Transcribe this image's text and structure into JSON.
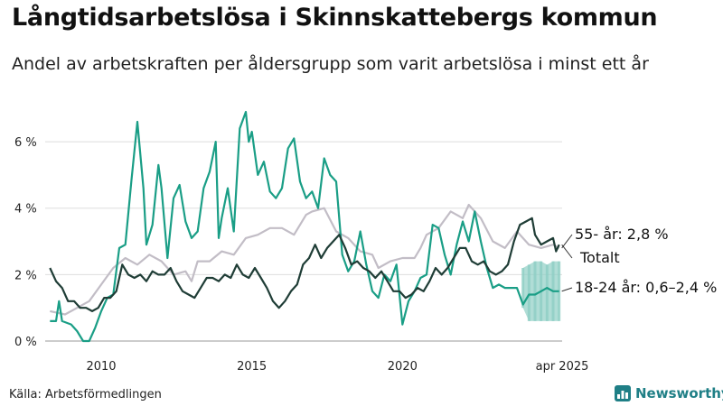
{
  "title": "Långtidsarbetslösa i Skinnskattebergs kommun",
  "subtitle": "Andel av arbetskraften per åldersgrupp som varit arbetslösa i minst ett år",
  "source": "Källa: Arbetsförmedlingen",
  "brand": "Newsworthy",
  "colors": {
    "totalt": "#1f3d36",
    "age55": "#c2bdc6",
    "age1824": "#1a9e86",
    "band": "#8ecfc4",
    "grid": "#dddddd"
  },
  "chart_data": {
    "type": "line",
    "x_ticks": [
      "2010",
      "2015",
      "2020",
      "apr 2025"
    ],
    "y_ticks": [
      "0 %",
      "2 %",
      "4 %",
      "6 %"
    ],
    "xlim": [
      2008.2,
      2025.3
    ],
    "ylim": [
      0,
      6.6
    ],
    "grid": true,
    "series": [
      {
        "key": "age55",
        "name": "55- år: 2,8 %",
        "color": "#c2bdc6",
        "points": [
          [
            2008.3,
            0.9
          ],
          [
            2008.8,
            0.8
          ],
          [
            2009.2,
            1.0
          ],
          [
            2009.6,
            1.2
          ],
          [
            2010.0,
            1.7
          ],
          [
            2010.4,
            2.2
          ],
          [
            2010.8,
            2.5
          ],
          [
            2011.2,
            2.3
          ],
          [
            2011.6,
            2.6
          ],
          [
            2012.0,
            2.4
          ],
          [
            2012.4,
            2.0
          ],
          [
            2012.8,
            2.1
          ],
          [
            2013.0,
            1.8
          ],
          [
            2013.2,
            2.4
          ],
          [
            2013.6,
            2.4
          ],
          [
            2014.0,
            2.7
          ],
          [
            2014.4,
            2.6
          ],
          [
            2014.8,
            3.1
          ],
          [
            2015.2,
            3.2
          ],
          [
            2015.6,
            3.4
          ],
          [
            2016.0,
            3.4
          ],
          [
            2016.4,
            3.2
          ],
          [
            2016.8,
            3.8
          ],
          [
            2017.0,
            3.9
          ],
          [
            2017.4,
            4.0
          ],
          [
            2017.8,
            3.3
          ],
          [
            2018.2,
            3.1
          ],
          [
            2018.6,
            2.7
          ],
          [
            2019.0,
            2.6
          ],
          [
            2019.2,
            2.2
          ],
          [
            2019.6,
            2.4
          ],
          [
            2020.0,
            2.5
          ],
          [
            2020.4,
            2.5
          ],
          [
            2020.6,
            2.8
          ],
          [
            2020.8,
            3.2
          ],
          [
            2021.2,
            3.4
          ],
          [
            2021.6,
            3.9
          ],
          [
            2022.0,
            3.7
          ],
          [
            2022.2,
            4.1
          ],
          [
            2022.6,
            3.7
          ],
          [
            2023.0,
            3.0
          ],
          [
            2023.4,
            2.8
          ],
          [
            2023.8,
            3.3
          ],
          [
            2024.2,
            2.9
          ],
          [
            2024.6,
            2.8
          ],
          [
            2025.0,
            2.9
          ],
          [
            2025.2,
            2.8
          ]
        ]
      },
      {
        "key": "age1824",
        "name": "18-24 år: 0,6–2,4 %",
        "color": "#1a9e86",
        "points": [
          [
            2008.3,
            0.6
          ],
          [
            2008.5,
            0.6
          ],
          [
            2008.6,
            1.2
          ],
          [
            2008.7,
            0.6
          ],
          [
            2009.0,
            0.5
          ],
          [
            2009.2,
            0.3
          ],
          [
            2009.4,
            0.0
          ],
          [
            2009.6,
            0.0
          ],
          [
            2009.8,
            0.4
          ],
          [
            2010.0,
            0.9
          ],
          [
            2010.2,
            1.3
          ],
          [
            2010.4,
            1.4
          ],
          [
            2010.6,
            2.8
          ],
          [
            2010.8,
            2.9
          ],
          [
            2011.0,
            4.8
          ],
          [
            2011.2,
            6.6
          ],
          [
            2011.4,
            4.6
          ],
          [
            2011.5,
            2.9
          ],
          [
            2011.7,
            3.5
          ],
          [
            2011.9,
            5.3
          ],
          [
            2012.0,
            4.6
          ],
          [
            2012.2,
            2.5
          ],
          [
            2012.4,
            4.3
          ],
          [
            2012.6,
            4.7
          ],
          [
            2012.8,
            3.6
          ],
          [
            2013.0,
            3.1
          ],
          [
            2013.2,
            3.3
          ],
          [
            2013.4,
            4.6
          ],
          [
            2013.6,
            5.1
          ],
          [
            2013.8,
            6.0
          ],
          [
            2013.9,
            3.1
          ],
          [
            2014.0,
            3.7
          ],
          [
            2014.2,
            4.6
          ],
          [
            2014.4,
            3.3
          ],
          [
            2014.6,
            6.4
          ],
          [
            2014.8,
            6.9
          ],
          [
            2014.9,
            6.0
          ],
          [
            2015.0,
            6.3
          ],
          [
            2015.2,
            5.0
          ],
          [
            2015.4,
            5.4
          ],
          [
            2015.6,
            4.5
          ],
          [
            2015.8,
            4.3
          ],
          [
            2016.0,
            4.6
          ],
          [
            2016.2,
            5.8
          ],
          [
            2016.4,
            6.1
          ],
          [
            2016.6,
            4.8
          ],
          [
            2016.8,
            4.3
          ],
          [
            2017.0,
            4.5
          ],
          [
            2017.2,
            4.0
          ],
          [
            2017.4,
            5.5
          ],
          [
            2017.6,
            5.0
          ],
          [
            2017.8,
            4.8
          ],
          [
            2018.0,
            2.6
          ],
          [
            2018.2,
            2.1
          ],
          [
            2018.4,
            2.4
          ],
          [
            2018.6,
            3.3
          ],
          [
            2018.8,
            2.3
          ],
          [
            2019.0,
            1.5
          ],
          [
            2019.2,
            1.3
          ],
          [
            2019.4,
            2.0
          ],
          [
            2019.6,
            1.8
          ],
          [
            2019.8,
            2.3
          ],
          [
            2019.9,
            1.4
          ],
          [
            2020.0,
            0.5
          ],
          [
            2020.2,
            1.2
          ],
          [
            2020.4,
            1.5
          ],
          [
            2020.6,
            1.9
          ],
          [
            2020.8,
            2.0
          ],
          [
            2021.0,
            3.5
          ],
          [
            2021.2,
            3.4
          ],
          [
            2021.4,
            2.6
          ],
          [
            2021.6,
            2.0
          ],
          [
            2021.8,
            2.9
          ],
          [
            2022.0,
            3.6
          ],
          [
            2022.2,
            3.0
          ],
          [
            2022.4,
            3.9
          ],
          [
            2022.6,
            3.0
          ],
          [
            2022.8,
            2.2
          ],
          [
            2023.0,
            1.6
          ],
          [
            2023.2,
            1.7
          ],
          [
            2023.4,
            1.6
          ],
          [
            2023.6,
            1.6
          ],
          [
            2023.8,
            1.6
          ],
          [
            2024.0,
            1.1
          ],
          [
            2024.2,
            1.4
          ],
          [
            2024.4,
            1.4
          ],
          [
            2024.6,
            1.5
          ],
          [
            2024.8,
            1.6
          ],
          [
            2025.0,
            1.5
          ],
          [
            2025.2,
            1.5
          ]
        ]
      },
      {
        "key": "totalt",
        "name": "Totalt",
        "color": "#1f3d36",
        "points": [
          [
            2008.3,
            2.2
          ],
          [
            2008.5,
            1.8
          ],
          [
            2008.7,
            1.6
          ],
          [
            2008.9,
            1.2
          ],
          [
            2009.1,
            1.2
          ],
          [
            2009.3,
            1.0
          ],
          [
            2009.5,
            1.0
          ],
          [
            2009.7,
            0.9
          ],
          [
            2009.9,
            1.0
          ],
          [
            2010.1,
            1.3
          ],
          [
            2010.3,
            1.3
          ],
          [
            2010.5,
            1.5
          ],
          [
            2010.7,
            2.3
          ],
          [
            2010.9,
            2.0
          ],
          [
            2011.1,
            1.9
          ],
          [
            2011.3,
            2.0
          ],
          [
            2011.5,
            1.8
          ],
          [
            2011.7,
            2.1
          ],
          [
            2011.9,
            2.0
          ],
          [
            2012.1,
            2.0
          ],
          [
            2012.3,
            2.2
          ],
          [
            2012.5,
            1.8
          ],
          [
            2012.7,
            1.5
          ],
          [
            2012.9,
            1.4
          ],
          [
            2013.1,
            1.3
          ],
          [
            2013.3,
            1.6
          ],
          [
            2013.5,
            1.9
          ],
          [
            2013.7,
            1.9
          ],
          [
            2013.9,
            1.8
          ],
          [
            2014.1,
            2.0
          ],
          [
            2014.3,
            1.9
          ],
          [
            2014.5,
            2.3
          ],
          [
            2014.7,
            2.0
          ],
          [
            2014.9,
            1.9
          ],
          [
            2015.1,
            2.2
          ],
          [
            2015.3,
            1.9
          ],
          [
            2015.5,
            1.6
          ],
          [
            2015.7,
            1.2
          ],
          [
            2015.9,
            1.0
          ],
          [
            2016.1,
            1.2
          ],
          [
            2016.3,
            1.5
          ],
          [
            2016.5,
            1.7
          ],
          [
            2016.7,
            2.3
          ],
          [
            2016.9,
            2.5
          ],
          [
            2017.1,
            2.9
          ],
          [
            2017.3,
            2.5
          ],
          [
            2017.5,
            2.8
          ],
          [
            2017.7,
            3.0
          ],
          [
            2017.9,
            3.2
          ],
          [
            2018.1,
            2.8
          ],
          [
            2018.3,
            2.3
          ],
          [
            2018.5,
            2.4
          ],
          [
            2018.7,
            2.2
          ],
          [
            2018.9,
            2.1
          ],
          [
            2019.1,
            1.9
          ],
          [
            2019.3,
            2.1
          ],
          [
            2019.5,
            1.8
          ],
          [
            2019.7,
            1.5
          ],
          [
            2019.9,
            1.5
          ],
          [
            2020.1,
            1.3
          ],
          [
            2020.3,
            1.4
          ],
          [
            2020.5,
            1.6
          ],
          [
            2020.7,
            1.5
          ],
          [
            2020.9,
            1.8
          ],
          [
            2021.1,
            2.2
          ],
          [
            2021.3,
            2.0
          ],
          [
            2021.5,
            2.2
          ],
          [
            2021.7,
            2.5
          ],
          [
            2021.9,
            2.8
          ],
          [
            2022.1,
            2.8
          ],
          [
            2022.3,
            2.4
          ],
          [
            2022.5,
            2.3
          ],
          [
            2022.7,
            2.4
          ],
          [
            2022.9,
            2.1
          ],
          [
            2023.1,
            2.0
          ],
          [
            2023.3,
            2.1
          ],
          [
            2023.5,
            2.3
          ],
          [
            2023.7,
            3.0
          ],
          [
            2023.9,
            3.5
          ],
          [
            2024.1,
            3.6
          ],
          [
            2024.3,
            3.7
          ],
          [
            2024.4,
            3.2
          ],
          [
            2024.6,
            2.9
          ],
          [
            2024.8,
            3.0
          ],
          [
            2025.0,
            3.1
          ],
          [
            2025.1,
            2.7
          ],
          [
            2025.2,
            2.9
          ]
        ]
      }
    ],
    "band": {
      "series": "age1824",
      "points": [
        [
          2024.0,
          1.0,
          2.2
        ],
        [
          2024.2,
          0.6,
          2.3
        ],
        [
          2024.4,
          0.6,
          2.4
        ],
        [
          2024.6,
          0.6,
          2.4
        ],
        [
          2024.8,
          0.6,
          2.3
        ],
        [
          2025.0,
          0.6,
          2.4
        ],
        [
          2025.2,
          0.6,
          2.4
        ]
      ]
    }
  }
}
